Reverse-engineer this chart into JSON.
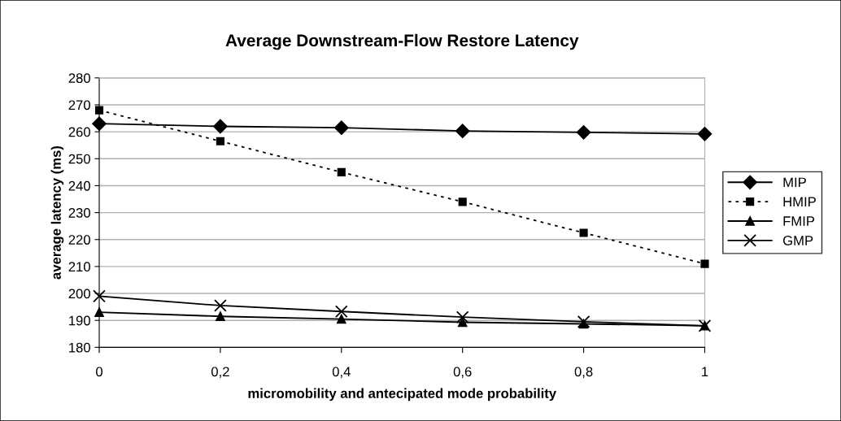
{
  "chart_data": {
    "type": "line",
    "title": "Average Downstream-Flow Restore Latency",
    "xlabel": "micromobility and antecipated mode probability",
    "ylabel": "average latency (ms)",
    "categories": [
      "0",
      "0,2",
      "0,4",
      "0,6",
      "0,8",
      "1"
    ],
    "ylim": [
      180,
      280
    ],
    "yticks": [
      180,
      190,
      200,
      210,
      220,
      230,
      240,
      250,
      260,
      270,
      280
    ],
    "grid": "y",
    "legend": "right",
    "series": [
      {
        "name": "MIP",
        "color": "#000000",
        "marker": "diamond",
        "line_style": "solid",
        "values": [
          263,
          262,
          261.5,
          260.3,
          259.8,
          259.2
        ]
      },
      {
        "name": "HMIP",
        "color": "#000000",
        "marker": "square",
        "line_style": "dotted",
        "values": [
          268,
          256.5,
          245,
          234,
          222.5,
          211
        ]
      },
      {
        "name": "FMIP",
        "color": "#000000",
        "marker": "triangle",
        "line_style": "solid",
        "values": [
          193,
          191.5,
          190.5,
          189.3,
          188.7,
          188
        ]
      },
      {
        "name": "GMP",
        "color": "#000000",
        "marker": "cross",
        "line_style": "solid",
        "values": [
          199,
          195.5,
          193.3,
          191.2,
          189.5,
          188
        ]
      }
    ]
  }
}
